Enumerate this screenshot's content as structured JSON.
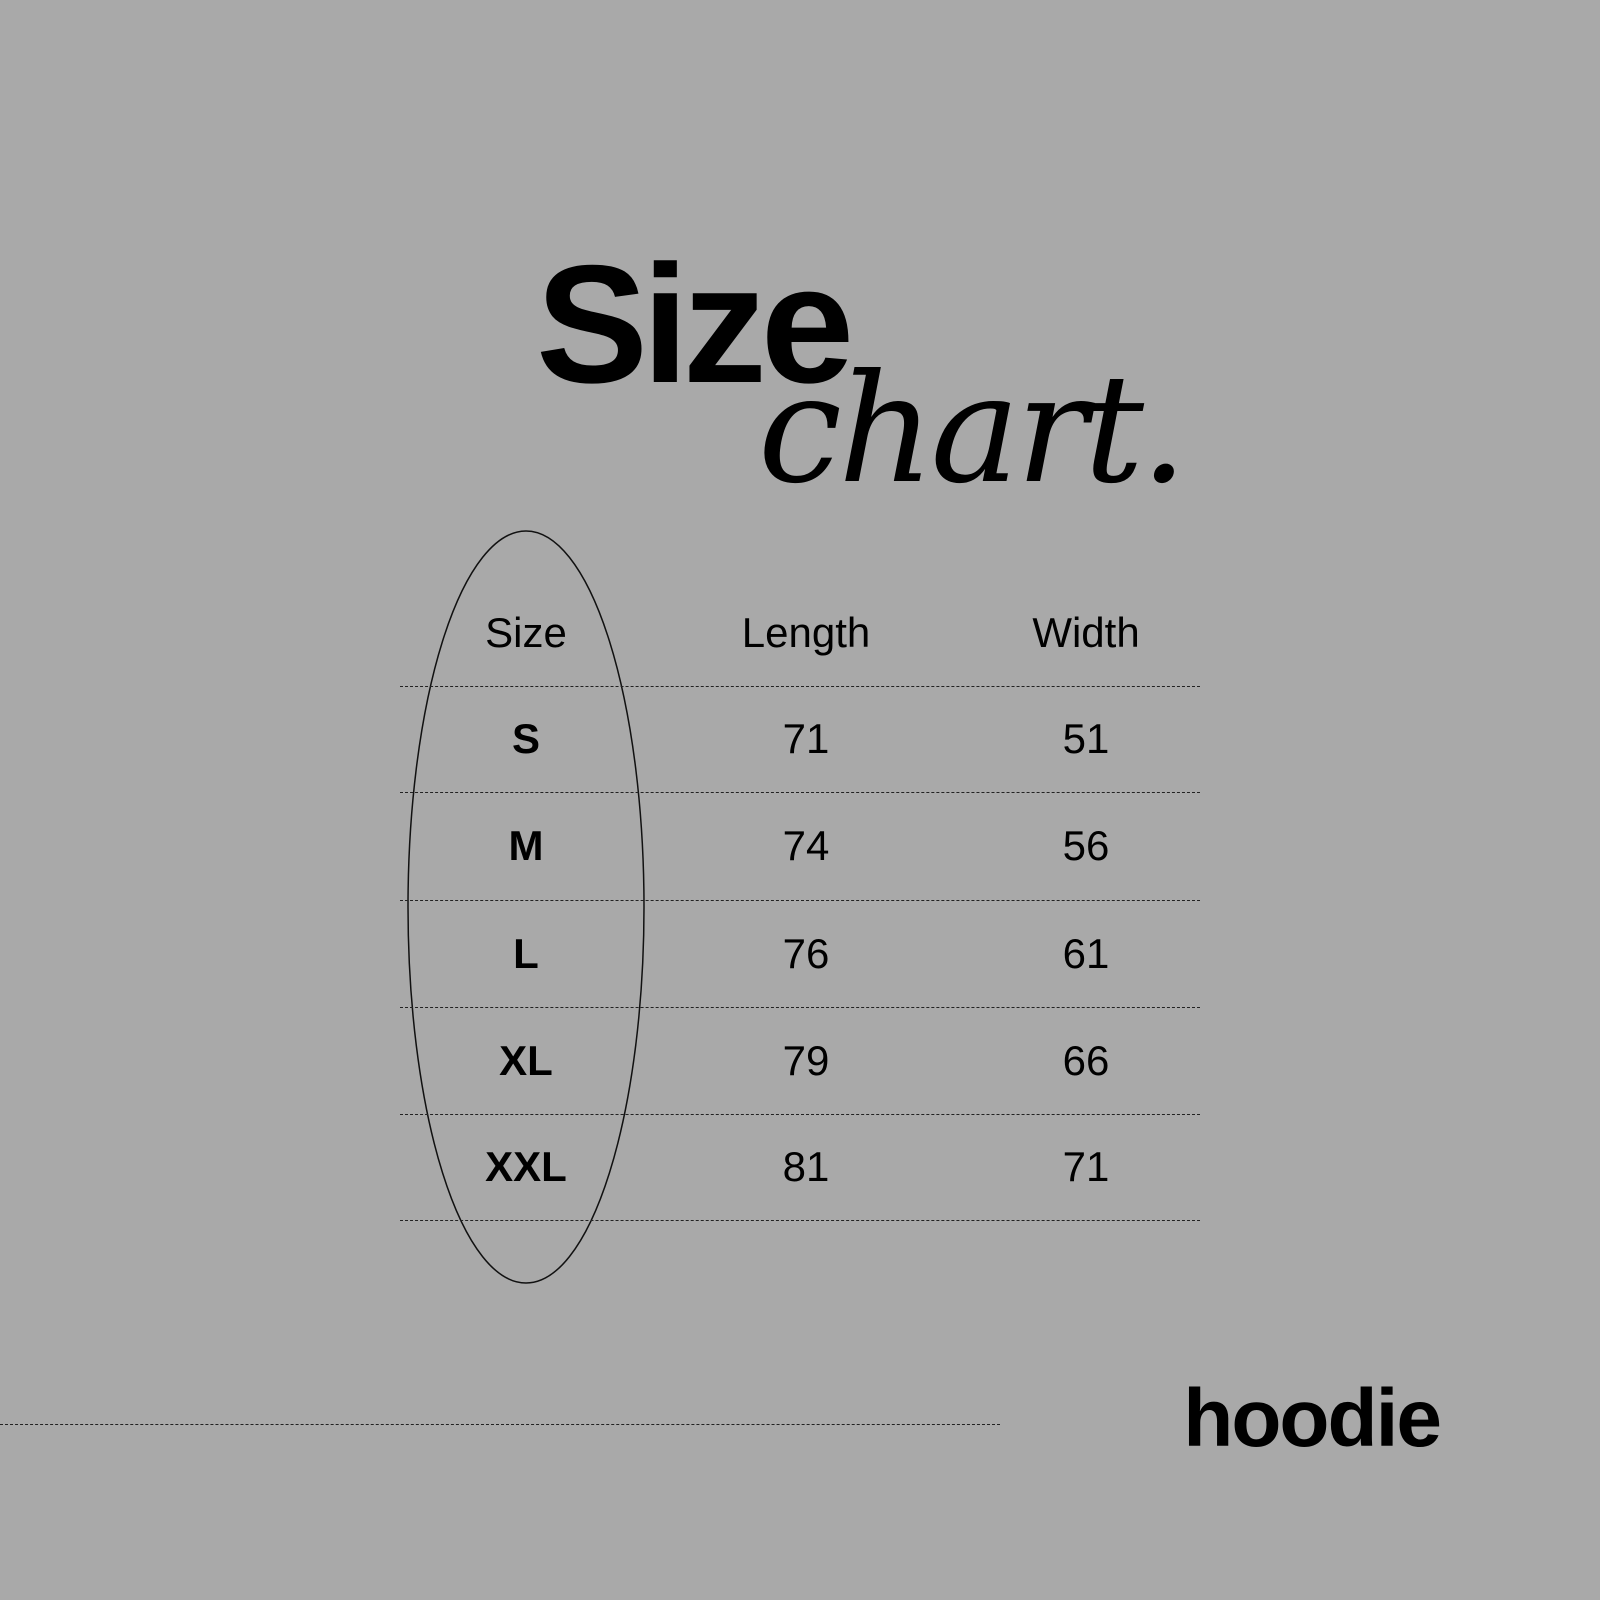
{
  "title": {
    "line1": "Size",
    "line2": "chart."
  },
  "table": {
    "headers": [
      "Size",
      "Length",
      "Width"
    ],
    "rows": [
      {
        "size": "S",
        "length": "71",
        "width": "51"
      },
      {
        "size": "M",
        "length": "74",
        "width": "56"
      },
      {
        "size": "L",
        "length": "76",
        "width": "61"
      },
      {
        "size": "XL",
        "length": "79",
        "width": "66"
      },
      {
        "size": "XXL",
        "length": "81",
        "width": "71"
      }
    ]
  },
  "brand": "hoodie",
  "colors": {
    "background": "#a9a9a9",
    "text": "#000000"
  }
}
